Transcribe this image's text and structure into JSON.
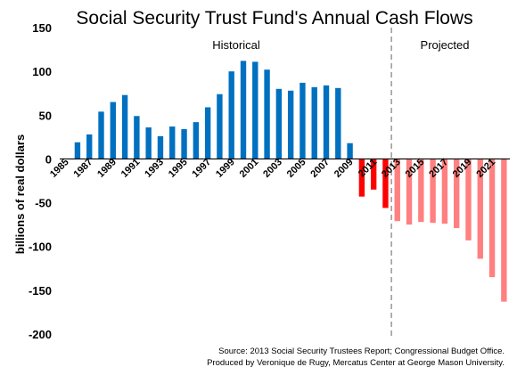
{
  "chart_data": {
    "type": "bar",
    "title": "Social Security Trust Fund's Annual Cash Flows",
    "ylabel": "billions of real dollars",
    "xlabel": "",
    "ylim": [
      -200,
      150
    ],
    "yticks": [
      150,
      100,
      50,
      0,
      -50,
      -100,
      -150,
      -200
    ],
    "x_tick_labels": [
      "1985",
      "1987",
      "1989",
      "1991",
      "1993",
      "1995",
      "1997",
      "1999",
      "2001",
      "2003",
      "2005",
      "2007",
      "2009",
      "2011",
      "2013",
      "2015",
      "2017",
      "2019",
      "2021"
    ],
    "grid": false,
    "regions": [
      {
        "label": "Historical"
      },
      {
        "label": "Projected"
      }
    ],
    "series": [
      {
        "color": "#0070C0",
        "points": [
          {
            "x": 1986,
            "y": 19
          },
          {
            "x": 1987,
            "y": 28
          },
          {
            "x": 1988,
            "y": 54
          },
          {
            "x": 1989,
            "y": 65
          },
          {
            "x": 1990,
            "y": 73
          },
          {
            "x": 1991,
            "y": 49
          },
          {
            "x": 1992,
            "y": 36
          },
          {
            "x": 1993,
            "y": 26
          },
          {
            "x": 1994,
            "y": 37
          },
          {
            "x": 1995,
            "y": 34
          },
          {
            "x": 1996,
            "y": 42
          },
          {
            "x": 1997,
            "y": 59
          },
          {
            "x": 1998,
            "y": 74
          },
          {
            "x": 1999,
            "y": 100
          },
          {
            "x": 2000,
            "y": 112
          },
          {
            "x": 2001,
            "y": 111
          },
          {
            "x": 2002,
            "y": 102
          },
          {
            "x": 2003,
            "y": 80
          },
          {
            "x": 2004,
            "y": 78
          },
          {
            "x": 2005,
            "y": 87
          },
          {
            "x": 2006,
            "y": 82
          },
          {
            "x": 2007,
            "y": 84
          },
          {
            "x": 2008,
            "y": 81
          },
          {
            "x": 2009,
            "y": 18
          }
        ]
      },
      {
        "color": "#FF0000",
        "points": [
          {
            "x": 2010,
            "y": -43
          },
          {
            "x": 2011,
            "y": -35
          },
          {
            "x": 2012,
            "y": -56
          }
        ]
      },
      {
        "color": "#FF8080",
        "points": [
          {
            "x": 2013,
            "y": -71
          },
          {
            "x": 2014,
            "y": -75
          },
          {
            "x": 2015,
            "y": -72
          },
          {
            "x": 2016,
            "y": -73
          },
          {
            "x": 2017,
            "y": -74
          },
          {
            "x": 2018,
            "y": -79
          },
          {
            "x": 2019,
            "y": -93
          },
          {
            "x": 2020,
            "y": -114
          },
          {
            "x": 2021,
            "y": -135
          },
          {
            "x": 2022,
            "y": -163
          }
        ]
      }
    ],
    "source_lines": [
      "Source: 2013 Social Security Trustees Report; Congressional Budget Office.",
      "Produced by Veronique de Rugy, Mercatus Center at George Mason University."
    ]
  }
}
